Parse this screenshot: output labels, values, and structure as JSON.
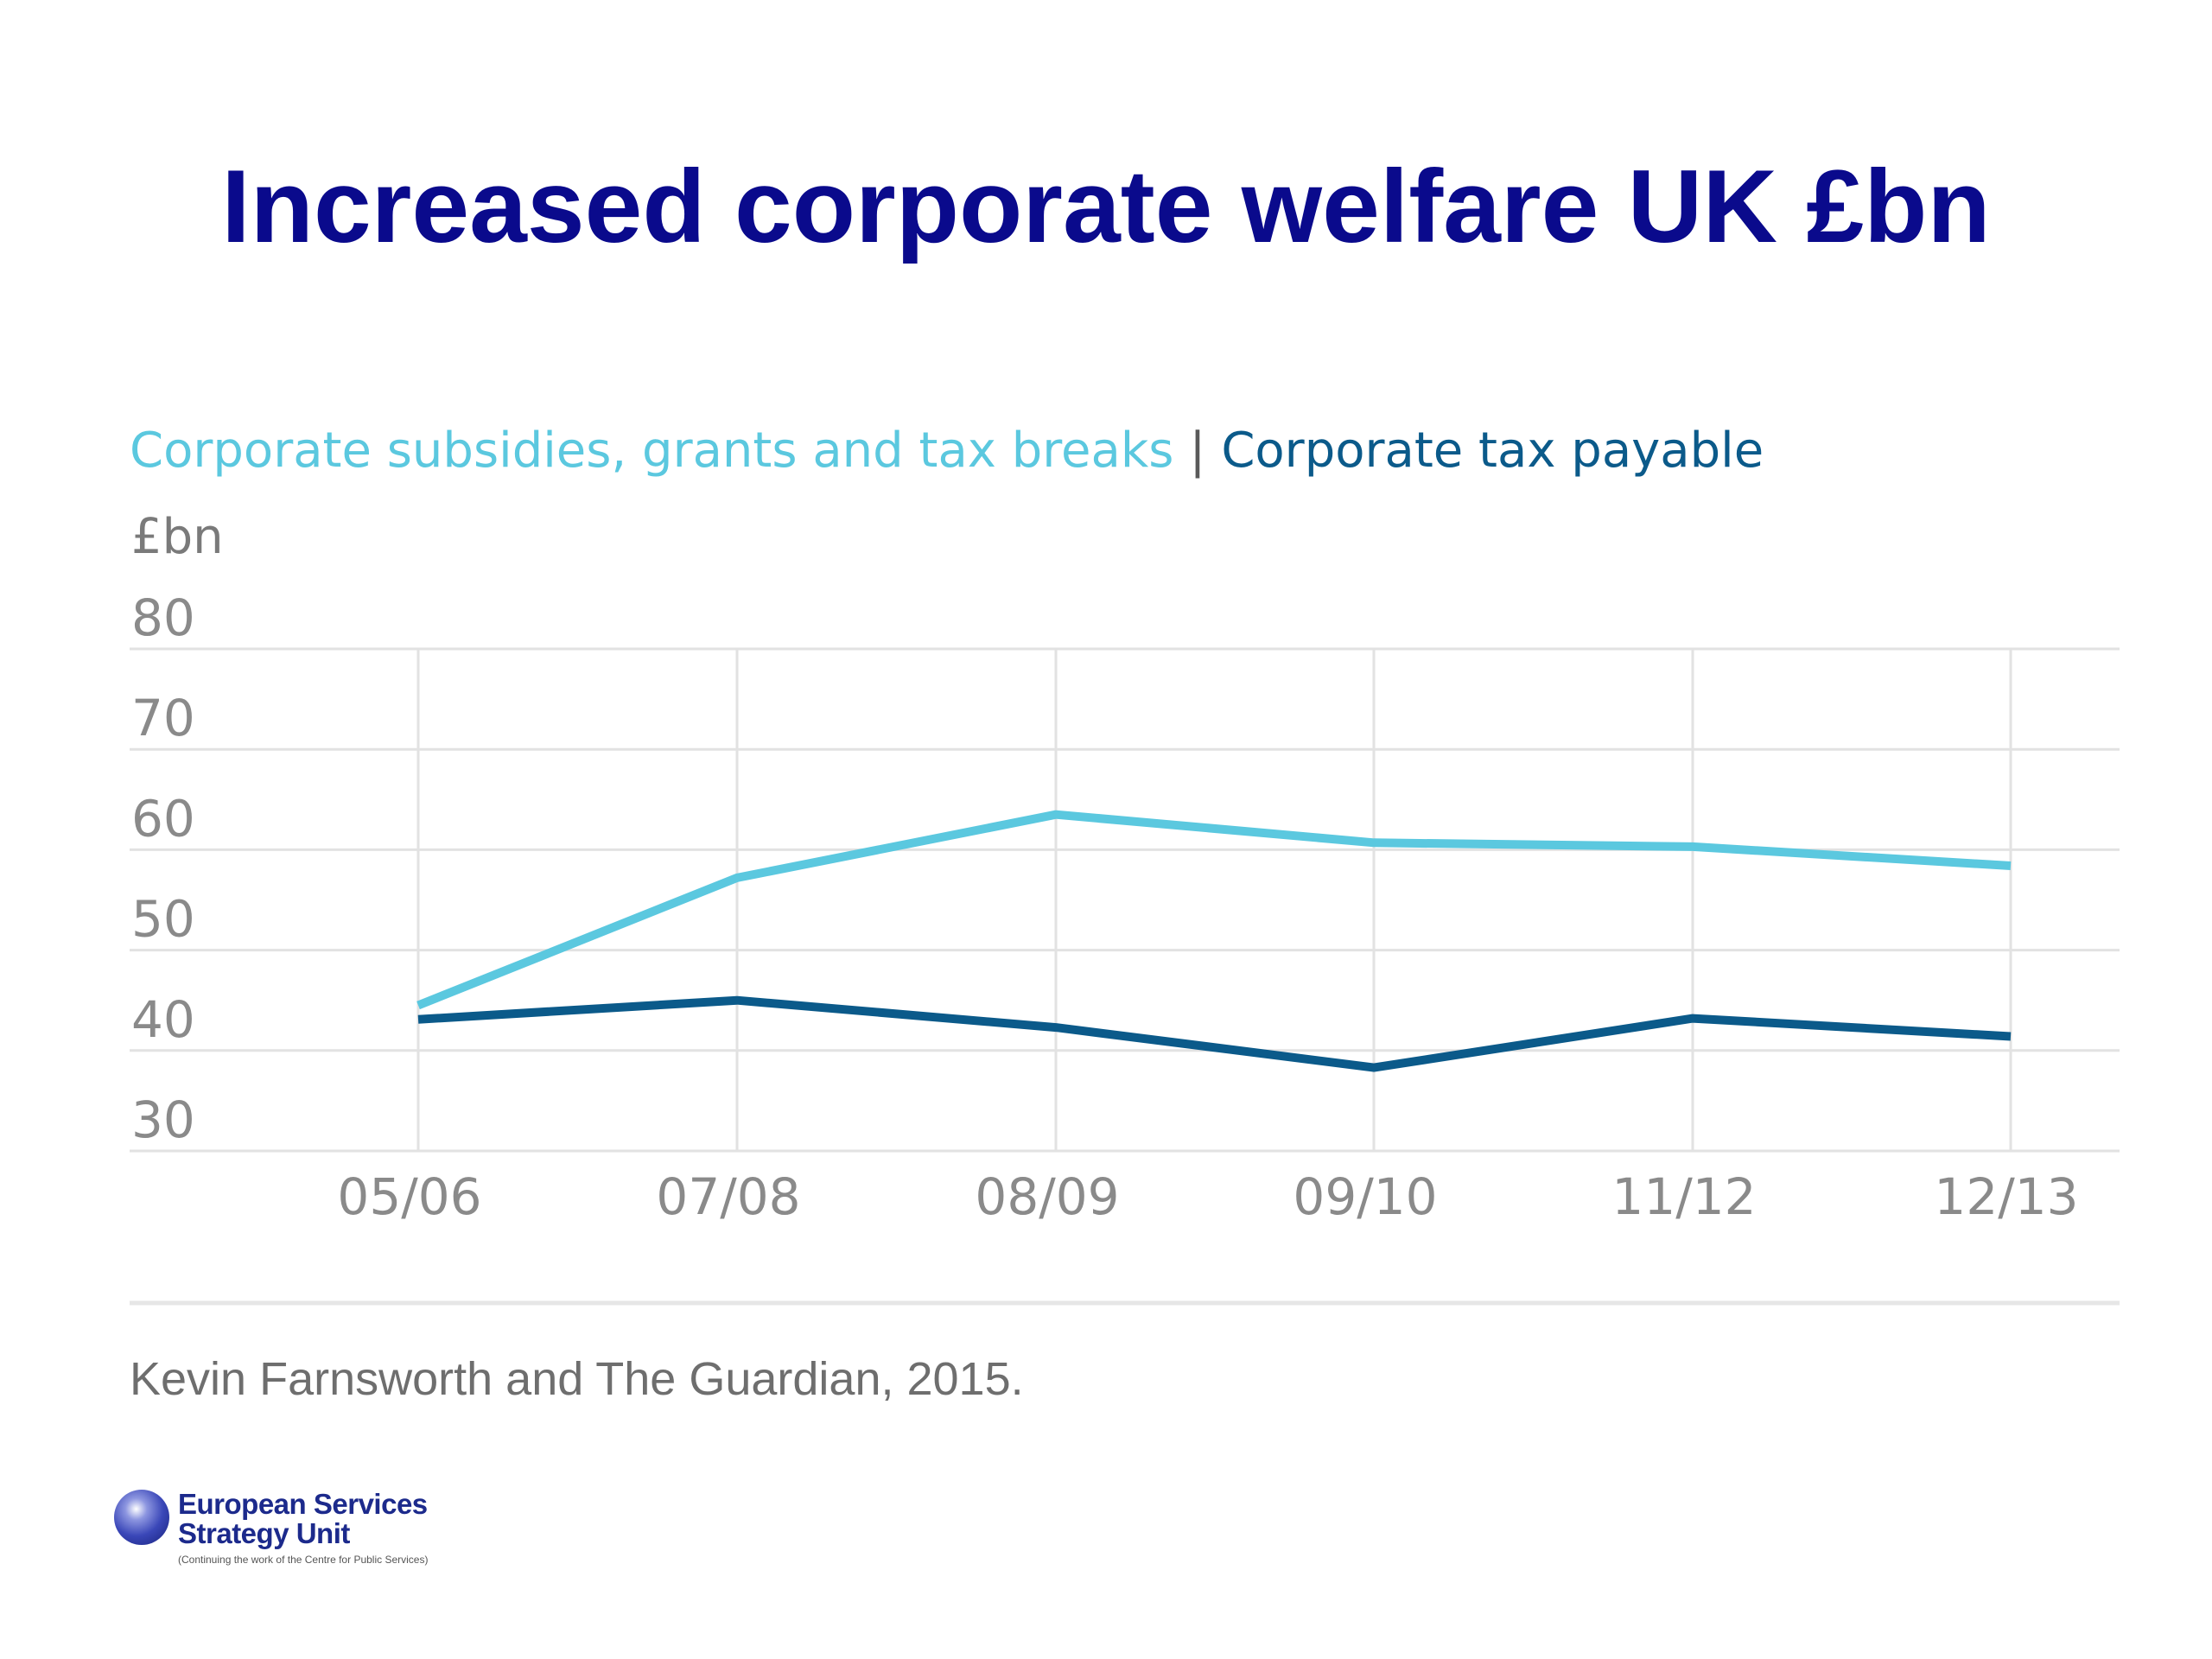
{
  "slide": {
    "title": "Increased corporate welfare UK £bn",
    "source": "Kevin Farnsworth and The Guardian, 2015."
  },
  "logo": {
    "line1": "European Services",
    "line2": "Strategy Unit",
    "tagline": "(Continuing the work of the Centre for Public Services)"
  },
  "colors": {
    "title": "#0a0a8c",
    "series_light": "#5bc8df",
    "series_dark": "#0b5a8a",
    "grid": "#e2e2e2",
    "tick": "#8a8a8a"
  },
  "chart_data": {
    "type": "line",
    "legend_separator": "|",
    "ylabel": "£bn",
    "ylim": [
      30,
      80
    ],
    "yticks": [
      80,
      70,
      60,
      50,
      40,
      30
    ],
    "categories": [
      "05/06",
      "07/08",
      "08/09",
      "09/10",
      "11/12",
      "12/13"
    ],
    "series": [
      {
        "name": "Corporate subsidies, grants and tax breaks",
        "color": "#5bc8df",
        "values": [
          44.5,
          57.2,
          63.5,
          60.7,
          60.3,
          58.4
        ]
      },
      {
        "name": "Corporate tax payable",
        "color": "#0b5a8a",
        "values": [
          43.1,
          45.0,
          42.3,
          38.3,
          43.2,
          41.4
        ]
      }
    ],
    "grid": true,
    "legend_position": "top-left"
  }
}
